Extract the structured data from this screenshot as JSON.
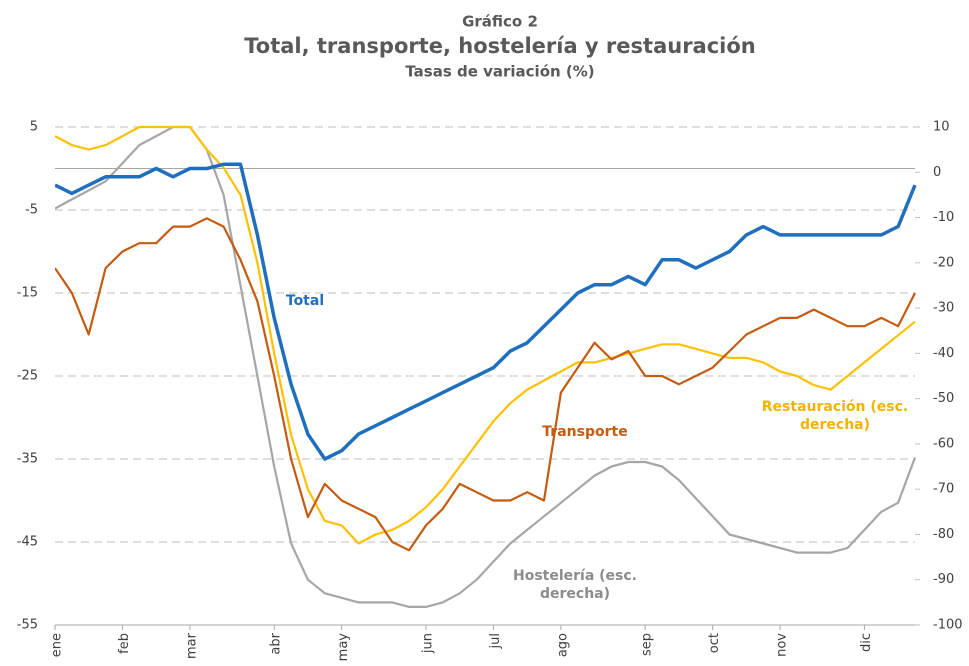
{
  "chart_data": {
    "type": "line",
    "title": "Gráfico 2",
    "subtitle": "Total, transporte, hostelería y restauración",
    "y_label": "Tasas de variación (%)",
    "categories": [
      "ene",
      null,
      null,
      null,
      "feb",
      null,
      null,
      null,
      "mar",
      null,
      null,
      null,
      null,
      "abr",
      null,
      null,
      null,
      "may",
      null,
      null,
      null,
      null,
      "jun",
      null,
      null,
      null,
      "jul",
      null,
      null,
      null,
      "ago",
      null,
      null,
      null,
      null,
      "sep",
      null,
      null,
      null,
      "oct",
      null,
      null,
      null,
      "nov",
      null,
      null,
      null,
      null,
      "dic",
      null,
      null,
      null
    ],
    "ylim": [
      -55,
      5
    ],
    "yticks": [
      -55,
      -45,
      -35,
      -25,
      -15,
      -5,
      5
    ],
    "y2lim": [
      -100,
      10
    ],
    "y2ticks": [
      -100,
      -90,
      -80,
      -70,
      -60,
      -50,
      -40,
      -30,
      -20,
      -10,
      0,
      10
    ],
    "grid": true,
    "series": [
      {
        "name": "Total",
        "color": "#1f6fbf",
        "values": [
          -2,
          -3,
          -2,
          -1,
          -1,
          -1,
          0,
          -1,
          0,
          0,
          0.5,
          0.5,
          -8,
          -18,
          -26,
          -32,
          -35,
          -34,
          -32,
          -31,
          -30,
          -29,
          -28,
          -27,
          -26,
          -25,
          -24,
          -22,
          -21,
          -19,
          -17,
          -15,
          -14,
          -14,
          -13,
          -14,
          -11,
          -11,
          -12,
          -11,
          -10,
          -8,
          -7,
          -8,
          -8,
          -8,
          -8,
          -8,
          -8,
          -8,
          -7,
          -2
        ]
      },
      {
        "name": "Transporte",
        "color": "#c55a11",
        "values": [
          -12,
          -15,
          -20,
          -12,
          -10,
          -9,
          -9,
          -7,
          -7,
          -6,
          -7,
          -11,
          -16,
          -25,
          -35,
          -42,
          -38,
          -40,
          -41,
          -42,
          -45,
          -46,
          -43,
          -41,
          -38,
          -39,
          -40,
          -40,
          -39,
          -40,
          -27,
          -24,
          -21,
          -23,
          -22,
          -25,
          -25,
          -26,
          -25,
          -24,
          -22,
          -20,
          -19,
          -18,
          -18,
          -17,
          -18,
          -19,
          -19,
          -18,
          -19,
          -15
        ]
      },
      {
        "name": "Restauración (esc. derecha)",
        "color": "#ffc000",
        "axis": "y2",
        "values": [
          8,
          6,
          5,
          6,
          8,
          10,
          10,
          10,
          10,
          5,
          1,
          -5,
          -20,
          -40,
          -58,
          -70,
          -77,
          -78,
          -82,
          -80,
          -79,
          -77,
          -74,
          -70,
          -65,
          -60,
          -55,
          -51,
          -48,
          -46,
          -44,
          -42,
          -42,
          -41,
          -40,
          -39,
          -38,
          -38,
          -39,
          -40,
          -41,
          -41,
          -42,
          -44,
          -45,
          -47,
          -48,
          -45,
          -42,
          -39,
          -36,
          -33
        ]
      },
      {
        "name": "Hostelería (esc. derecha)",
        "color": "#a6a6a6",
        "axis": "y2",
        "values": [
          -8,
          -6,
          -4,
          -2,
          2,
          6,
          8,
          10,
          10,
          5,
          -5,
          -25,
          -45,
          -65,
          -82,
          -90,
          -93,
          -94,
          -95,
          -95,
          -95,
          -96,
          -96,
          -95,
          -93,
          -90,
          -86,
          -82,
          -79,
          -76,
          -73,
          -70,
          -67,
          -65,
          -64,
          -64,
          -65,
          -68,
          -72,
          -76,
          -80,
          -81,
          -82,
          -83,
          -84,
          -84,
          -84,
          -83,
          -79,
          -75,
          -73,
          -63
        ]
      }
    ]
  }
}
